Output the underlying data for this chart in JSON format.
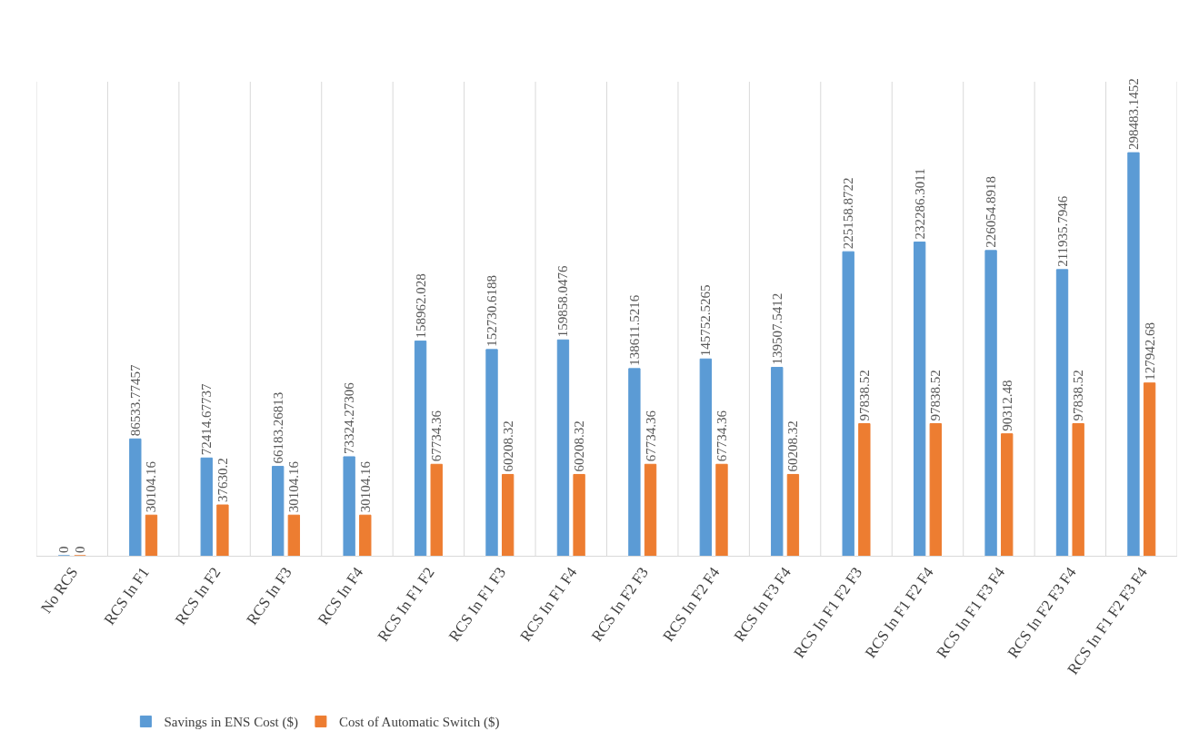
{
  "chart_data": {
    "type": "bar",
    "categories": [
      "No RCS",
      "RCS In F1",
      "RCS In F2",
      "RCS In F3",
      "RCS In F4",
      "RCS In F1 F2",
      "RCS In F1 F3",
      "RCS In F1 F4",
      "RCS In F2 F3",
      "RCS In F2 F4",
      "RCS In F3 F4",
      "RCS In F1 F2 F3",
      "RCS In F1 F2 F4",
      "RCS In F1 F3 F4",
      "RCS In F2 F3 F4",
      "RCS In F1 F2 F3 F4"
    ],
    "series": [
      {
        "name": "Savings in ENS Cost ($)",
        "color": "#5b9bd5",
        "values": [
          0,
          86533.77457,
          72414.67737,
          66183.26813,
          73324.27306,
          158962.028,
          152730.6188,
          159858.0476,
          138611.5216,
          145752.5265,
          139507.5412,
          225158.8722,
          232286.3011,
          226054.8918,
          211935.7946,
          298483.1452
        ]
      },
      {
        "name": "Cost of Automatic Switch ($)",
        "color": "#ed7d31",
        "values": [
          0,
          30104.16,
          37630.2,
          30104.16,
          30104.16,
          67734.36,
          60208.32,
          60208.32,
          67734.36,
          67734.36,
          60208.32,
          97838.52,
          97838.52,
          90312.48,
          97838.52,
          127942.68
        ]
      }
    ],
    "data_labels": true,
    "grid": "x",
    "legend": "bottom left"
  }
}
